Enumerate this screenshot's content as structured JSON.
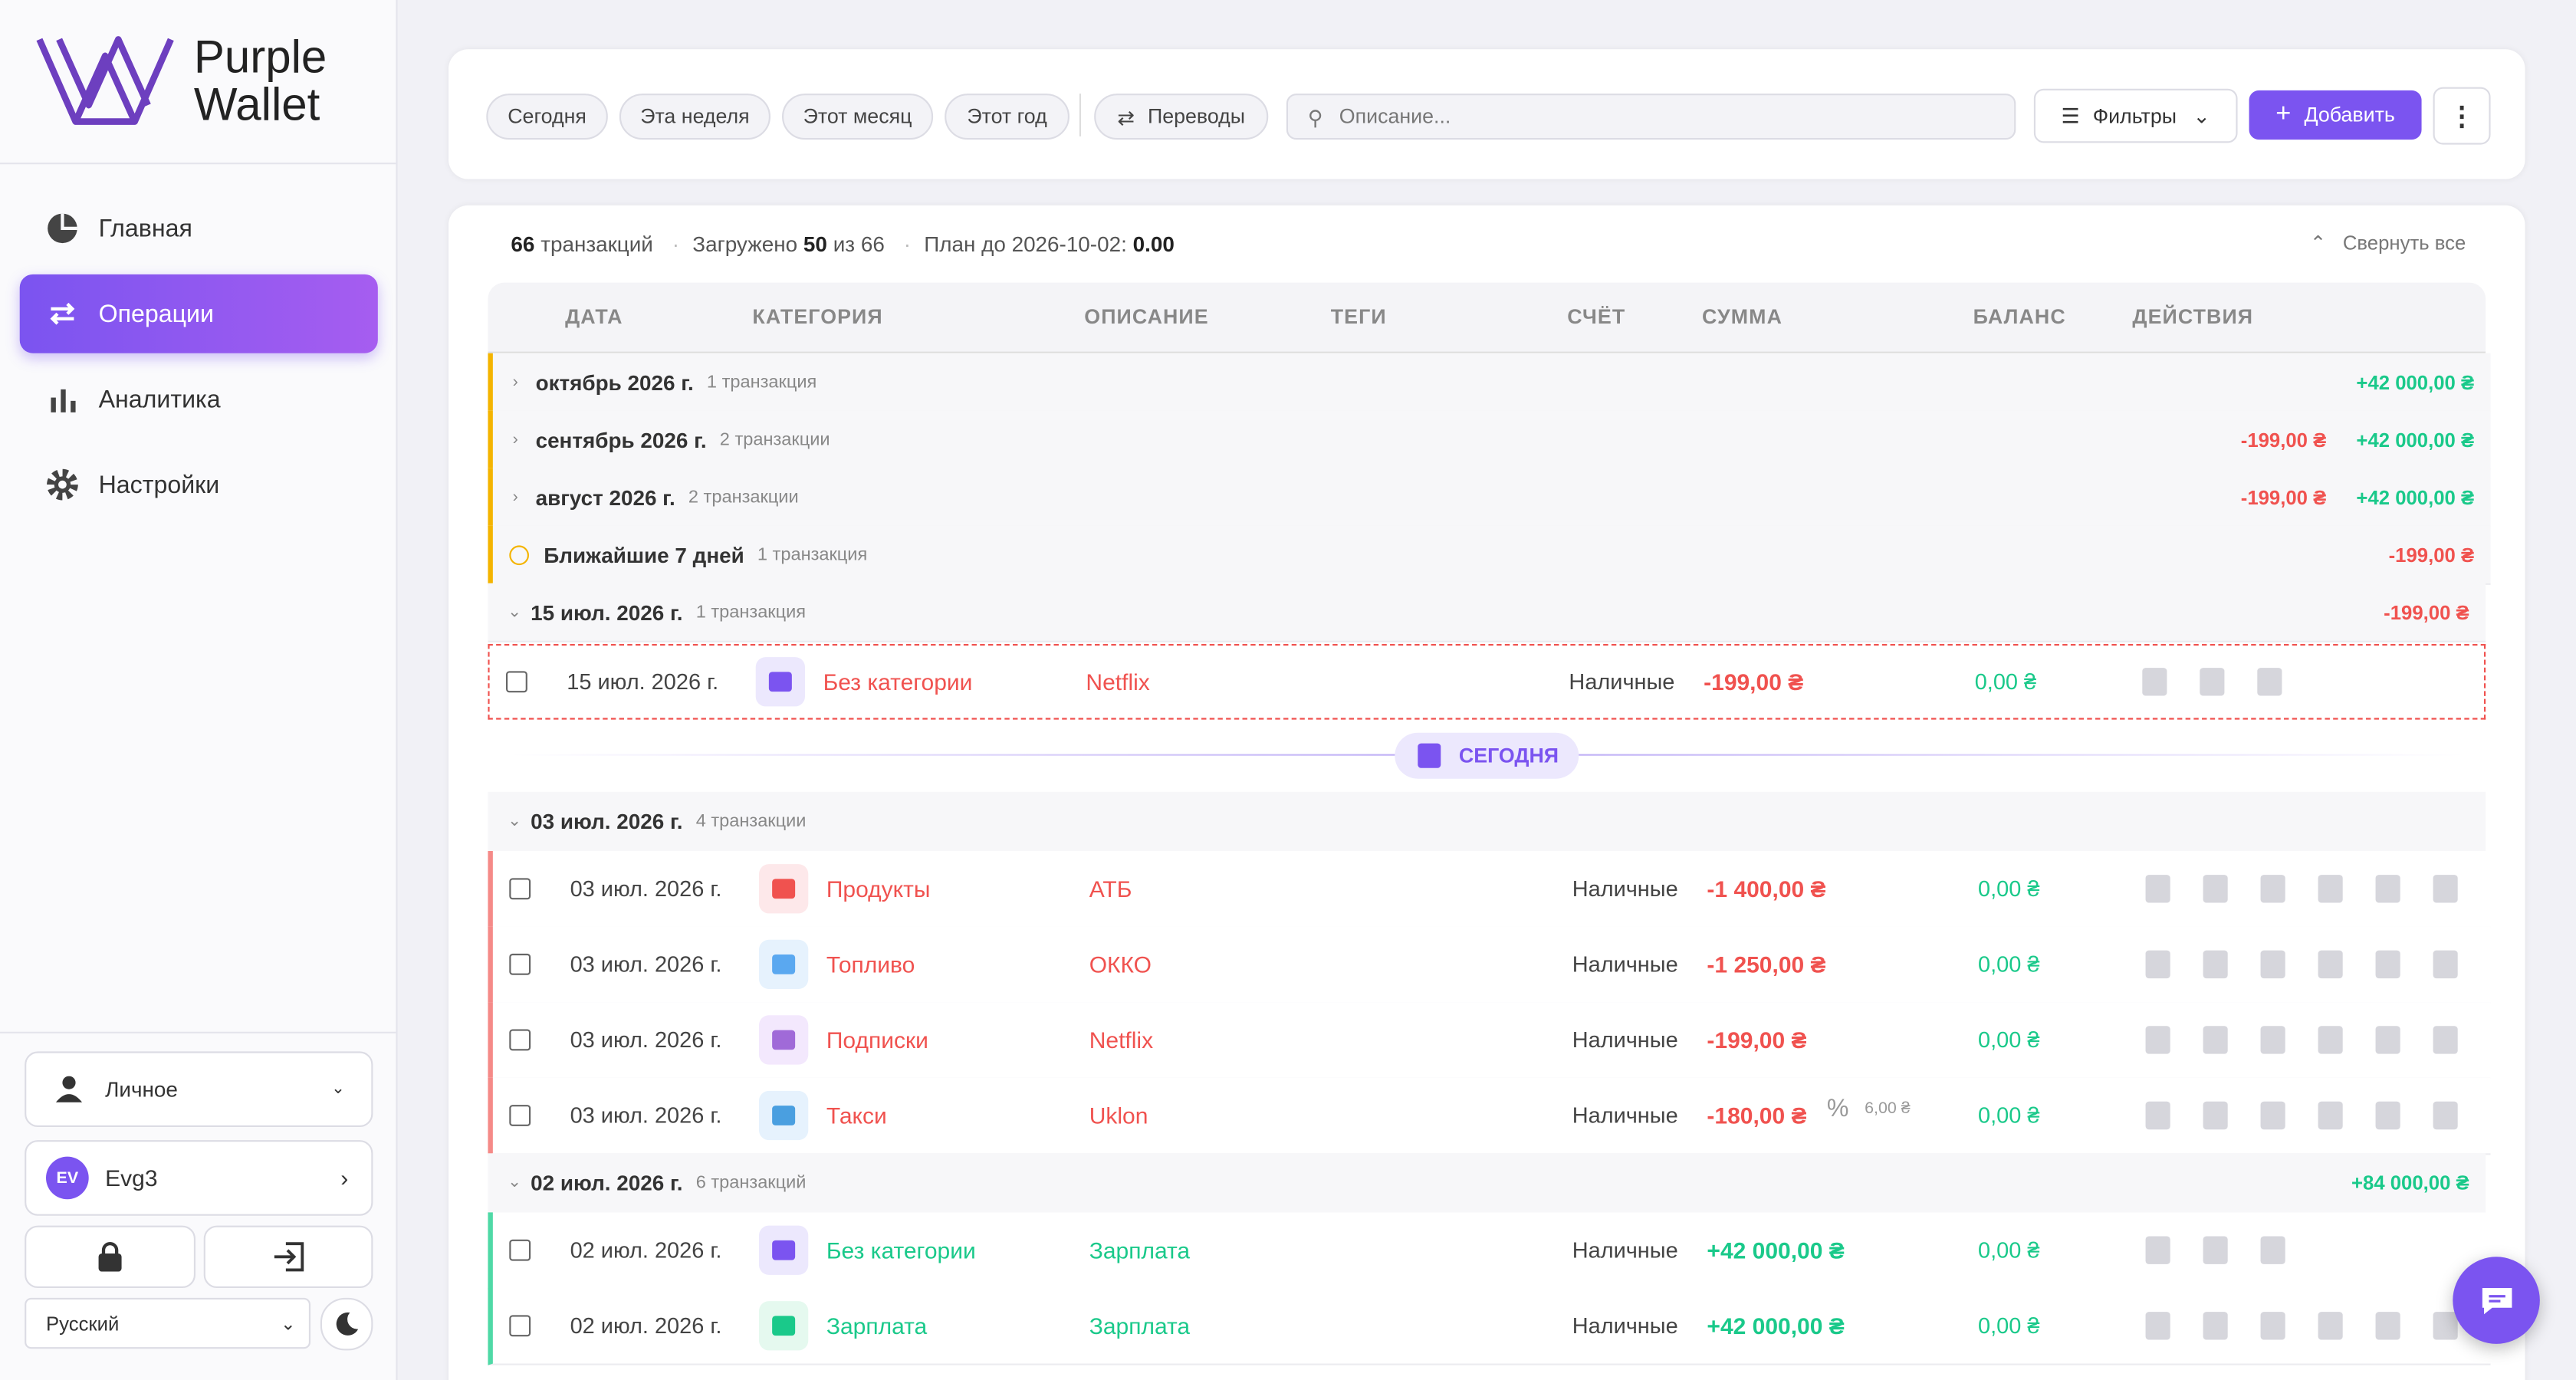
{
  "sidebar": {
    "logo": [
      "Purple",
      "Wallet"
    ],
    "nav": [
      "Главная",
      "Операции",
      "Аналитика",
      "Настройки"
    ],
    "profile": "Личное",
    "user_initials": "EV",
    "user": "Evg3",
    "language": "Русский"
  },
  "toolbar": {
    "periods": [
      "Сегодня",
      "Эта неделя",
      "Этот месяц",
      "Этот год"
    ],
    "transfers": "Переводы",
    "search_placeholder": "Описание...",
    "filters": "Фильтры",
    "add": "Добавить"
  },
  "summary": {
    "count": "66",
    "count_label": "транзакций",
    "loaded_label": "Загружено",
    "loaded": "50",
    "of": "из",
    "total": "66",
    "plan_label": "План до 2026-10-02:",
    "plan": "0.00",
    "collapse": "Свернуть все"
  },
  "table": {
    "columns": [
      "ДАТА",
      "КАТЕГОРИЯ",
      "ОПИСАНИЕ",
      "ТЕГИ",
      "СЧЁТ",
      "СУММА",
      "БАЛАНС",
      "ДЕЙСТВИЯ"
    ],
    "collapsed_groups": [
      {
        "title": "октябрь 2026 г.",
        "count": "1 транзакция",
        "amounts": [
          "+42 000,00 ₴"
        ]
      },
      {
        "title": "сентябрь 2026 г.",
        "count": "2 транзакции",
        "amounts": [
          "-199,00 ₴",
          "+42 000,00 ₴"
        ]
      },
      {
        "title": "август 2026 г.",
        "count": "2 транзакции",
        "amounts": [
          "-199,00 ₴",
          "+42 000,00 ₴"
        ]
      },
      {
        "title": "Ближайшие 7 дней",
        "count": "1 транзакция",
        "amounts": [
          "-199,00 ₴"
        ]
      }
    ],
    "upcoming": {
      "title": "15 июл. 2026 г.",
      "count": "1 транзакция",
      "amounts": [
        "-199,00 ₴"
      ],
      "transactions": [
        {
          "date": "15 июл. 2026 г.",
          "category": "Без категории",
          "description": "Netflix",
          "account": "Наличные",
          "amount": "-199,00 ₴",
          "balance": "0,00 ₴"
        }
      ]
    },
    "today": "СЕГОДНЯ",
    "days": [
      {
        "title": "03 июл. 2026 г.",
        "count": "4 транзакции",
        "amounts": [],
        "transactions": [
          {
            "date": "03 июл. 2026 г.",
            "category": "Продукты",
            "description": "АТБ",
            "account": "Наличные",
            "amount": "-1 400,00 ₴",
            "balance": "0,00 ₴"
          },
          {
            "date": "03 июл. 2026 г.",
            "category": "Топливо",
            "description": "ОККО",
            "account": "Наличные",
            "amount": "-1 250,00 ₴",
            "balance": "0,00 ₴"
          },
          {
            "date": "03 июл. 2026 г.",
            "category": "Подписки",
            "description": "Netflix",
            "account": "Наличные",
            "amount": "-199,00 ₴",
            "balance": "0,00 ₴"
          },
          {
            "date": "03 июл. 2026 г.",
            "category": "Такси",
            "description": "Uklon",
            "account": "Наличные",
            "amount": "-180,00 ₴",
            "fee": "6,00 ₴",
            "balance": "0,00 ₴"
          }
        ]
      },
      {
        "title": "02 июл. 2026 г.",
        "count": "6 транзакций",
        "amounts": [
          "+84 000,00 ₴"
        ],
        "transactions": [
          {
            "date": "02 июл. 2026 г.",
            "category": "Без категории",
            "description": "Зарплата",
            "account": "Наличные",
            "amount": "+42 000,00 ₴",
            "balance": "0,00 ₴"
          },
          {
            "date": "02 июл. 2026 г.",
            "category": "Зарплата",
            "description": "Зарплата",
            "account": "Наличные",
            "amount": "+42 000,00 ₴",
            "balance": "0,00 ₴"
          }
        ]
      }
    ]
  }
}
